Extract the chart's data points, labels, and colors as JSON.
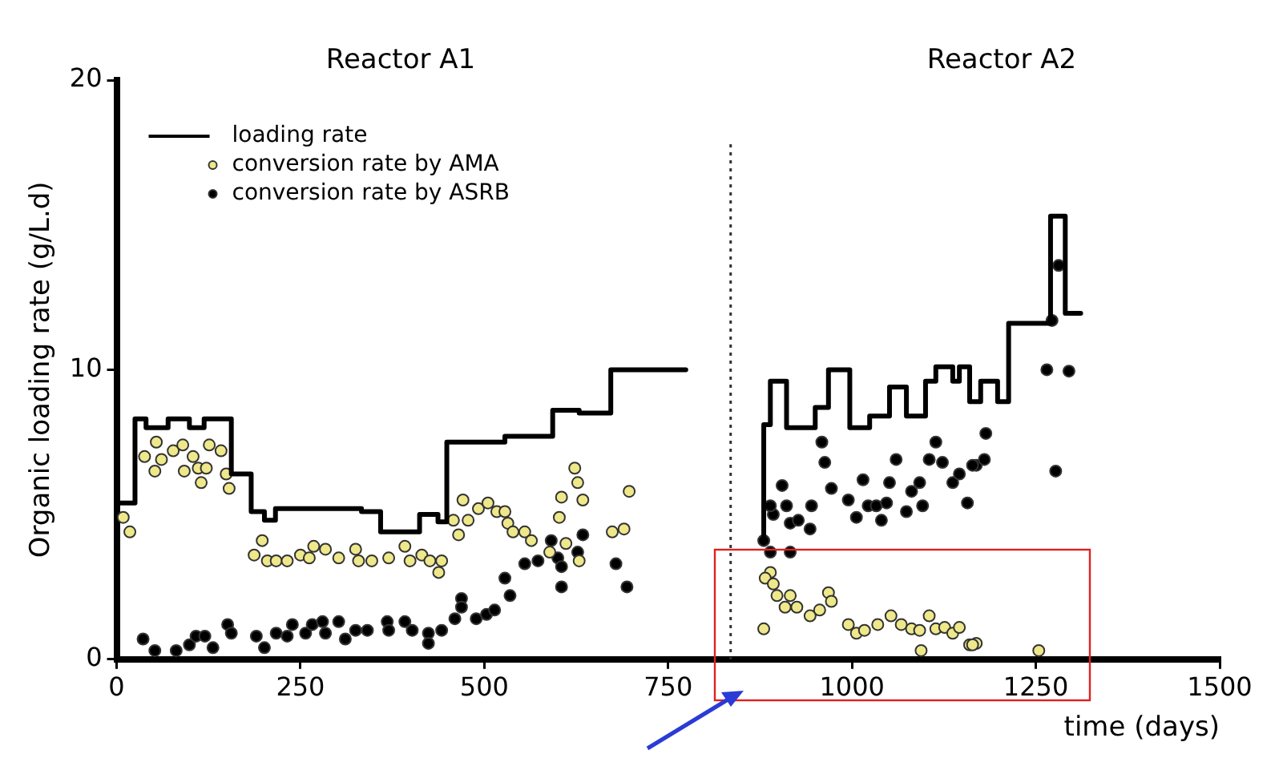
{
  "chart_data": {
    "type": "scatter",
    "xlabel": "time (days)",
    "ylabel": "Organic loading rate (g/L.d)",
    "annotations": [
      "Reactor A1",
      "Reactor A2"
    ],
    "xlim": [
      0,
      1500
    ],
    "xticks": [
      0,
      250,
      500,
      750,
      1000,
      1250,
      1500
    ],
    "ylim": [
      0,
      20
    ],
    "yticks": [
      0,
      10,
      20
    ],
    "grid": false,
    "legend": "top left",
    "ref_lines": [
      {
        "axis": "x",
        "value": 835,
        "line_style": "dotted",
        "color": "#333333"
      }
    ],
    "series": [
      {
        "name": "loading rate",
        "type": "step",
        "color": "#000000",
        "marker": "none",
        "line_style": "solid",
        "x": [
          0,
          25,
          40,
          70,
          99,
          119,
          156,
          183,
          201,
          216,
          333,
          359,
          412,
          437,
          449,
          528,
          593,
          629,
          672,
          774,
          null,
          880,
          880,
          889,
          911,
          950,
          968,
          997,
          1024,
          1051,
          1074,
          1100,
          1114,
          1137,
          1146,
          1160,
          1175,
          1198,
          1213,
          1270,
          1290,
          1311
        ],
        "values": [
          5.4,
          8.3,
          8.0,
          8.3,
          8.0,
          8.3,
          6.4,
          5.1,
          4.8,
          5.2,
          5.1,
          4.4,
          5.0,
          4.75,
          7.5,
          7.7,
          8.6,
          8.5,
          10.0,
          10.0,
          null,
          4.1,
          8.1,
          9.6,
          8.0,
          8.7,
          10.0,
          8.0,
          8.4,
          9.4,
          8.4,
          9.6,
          10.1,
          9.6,
          10.1,
          8.9,
          9.6,
          8.9,
          11.6,
          15.3,
          11.95,
          11.95
        ]
      },
      {
        "name": "conversion rate by AMA",
        "color": "#eee88a",
        "marker": "circle",
        "x": [
          9,
          18,
          38,
          54,
          52,
          61,
          77,
          90,
          92,
          104,
          111,
          115,
          122,
          126,
          142,
          149,
          153,
          187,
          198,
          205,
          217,
          232,
          250,
          262,
          268,
          284,
          302,
          325,
          329,
          347,
          370,
          392,
          399,
          415,
          426,
          442,
          438,
          458,
          465,
          471,
          478,
          492,
          505,
          517,
          528,
          532,
          539,
          555,
          564,
          589,
          602,
          605,
          611,
          623,
          627,
          634,
          629,
          674,
          690,
          697,
          880,
          889,
          882,
          893,
          898,
          916,
          909,
          925,
          943,
          956,
          968,
          972,
          995,
          1006,
          1017,
          1035,
          1053,
          1067,
          1081,
          1092,
          1094,
          1105,
          1114,
          1126,
          1137,
          1146,
          1160,
          1169,
          1164,
          1254
        ],
        "values": [
          4.9,
          4.4,
          7.0,
          7.5,
          6.5,
          6.9,
          7.2,
          7.4,
          6.5,
          7.0,
          6.6,
          6.1,
          6.6,
          7.4,
          7.2,
          6.4,
          5.9,
          3.6,
          4.1,
          3.4,
          3.4,
          3.4,
          3.6,
          3.5,
          3.9,
          3.8,
          3.5,
          3.8,
          3.4,
          3.4,
          3.5,
          3.9,
          3.4,
          3.6,
          3.4,
          3.4,
          3.0,
          4.8,
          4.3,
          5.5,
          4.8,
          5.2,
          5.4,
          5.1,
          5.1,
          4.7,
          4.4,
          4.4,
          4.1,
          3.7,
          4.9,
          5.6,
          4.0,
          6.6,
          6.1,
          5.5,
          3.4,
          4.4,
          4.5,
          5.8,
          1.05,
          3.0,
          2.8,
          2.6,
          2.2,
          2.2,
          1.8,
          1.8,
          1.5,
          1.7,
          2.3,
          2.0,
          1.2,
          0.9,
          1.0,
          1.2,
          1.5,
          1.2,
          1.05,
          1.0,
          0.3,
          1.5,
          1.05,
          1.1,
          0.9,
          1.1,
          0.5,
          0.55,
          0.5,
          0.3
        ]
      },
      {
        "name": "conversion rate by ASRB",
        "color": "#000000",
        "marker": "circle",
        "x": [
          36,
          52,
          81,
          99,
          108,
          120,
          131,
          151,
          156,
          190,
          201,
          217,
          232,
          239,
          257,
          266,
          280,
          284,
          302,
          311,
          325,
          341,
          368,
          370,
          392,
          402,
          424,
          442,
          424,
          460,
          469,
          469,
          489,
          503,
          514,
          528,
          535,
          555,
          573,
          591,
          600,
          605,
          605,
          627,
          634,
          679,
          694,
          880,
          889,
          916,
          893,
          905,
          889,
          911,
          916,
          927,
          943,
          945,
          959,
          963,
          972,
          995,
          1006,
          1015,
          1022,
          1033,
          1040,
          1047,
          1051,
          1060,
          1074,
          1081,
          1092,
          1096,
          1105,
          1114,
          1123,
          1137,
          1146,
          1157,
          1169,
          1182,
          1180,
          1164,
          1265,
          1295,
          1277,
          1281,
          1272
        ],
        "values": [
          0.7,
          0.3,
          0.3,
          0.5,
          0.8,
          0.8,
          0.4,
          1.2,
          0.9,
          0.8,
          0.4,
          0.9,
          0.8,
          1.2,
          0.9,
          1.2,
          1.3,
          0.9,
          1.3,
          0.7,
          1.0,
          1.0,
          1.3,
          1.0,
          1.3,
          1.0,
          0.9,
          1.0,
          0.55,
          1.4,
          2.1,
          1.8,
          1.4,
          1.55,
          1.7,
          2.8,
          2.2,
          3.3,
          3.4,
          4.1,
          3.5,
          2.5,
          3.2,
          3.7,
          4.3,
          3.3,
          2.5,
          4.1,
          3.7,
          3.7,
          5.0,
          6.0,
          5.3,
          5.3,
          4.7,
          4.8,
          4.5,
          5.3,
          7.5,
          6.8,
          5.9,
          5.5,
          4.9,
          6.2,
          5.3,
          5.3,
          4.8,
          5.4,
          6.1,
          6.9,
          5.1,
          5.8,
          6.1,
          5.3,
          6.9,
          7.5,
          6.8,
          6.1,
          6.4,
          5.4,
          6.7,
          7.8,
          6.9,
          6.7,
          10.0,
          9.95,
          6.5,
          13.6,
          11.7
        ]
      }
    ]
  }
}
